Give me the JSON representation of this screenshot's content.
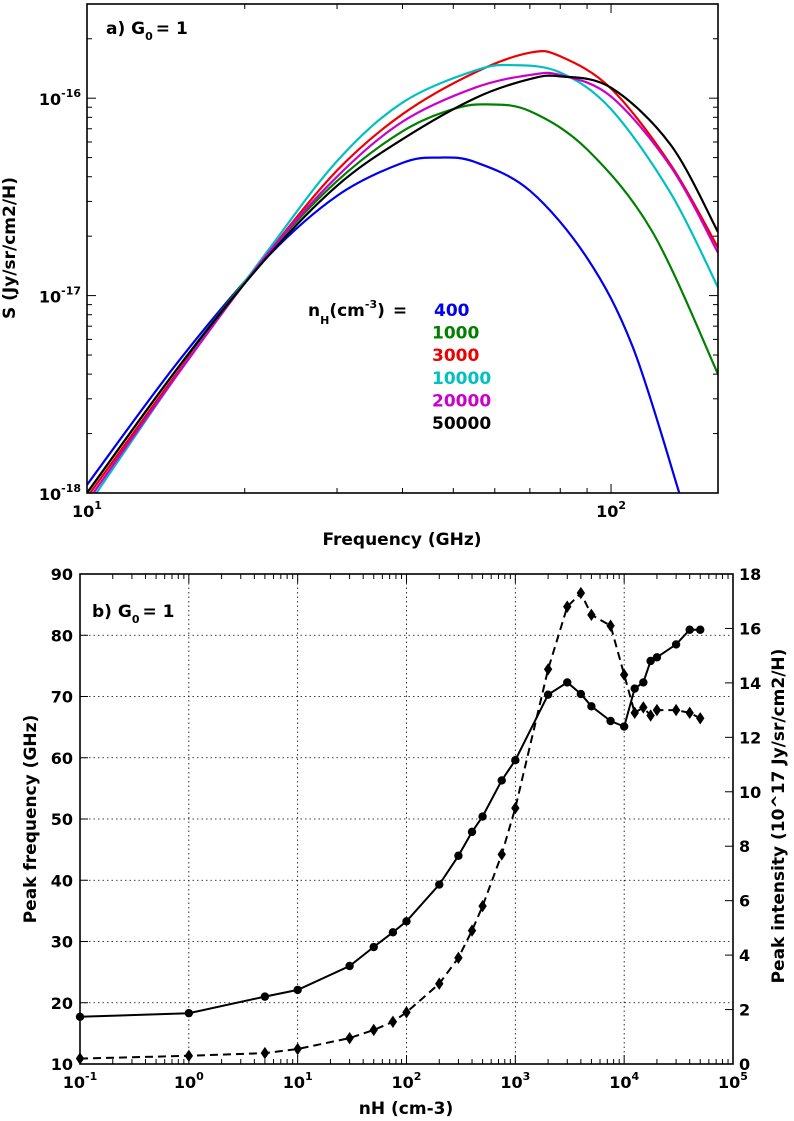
{
  "chart_data": [
    {
      "type": "line",
      "panel_label": "a)",
      "panel_g0": "G",
      "panel_g0_sub": "0",
      "panel_g0_val": "= 1",
      "xlabel": "Frequency (GHz)",
      "ylabel": "S (Jy/sr/cm2/H)",
      "xscale": "log",
      "yscale": "log",
      "xlim": [
        10,
        160
      ],
      "ylim": [
        1e-18,
        3e-16
      ],
      "x_ticks": [
        {
          "value": 10,
          "base": "10",
          "exp": "1"
        },
        {
          "value": 100,
          "base": "10",
          "exp": "2"
        }
      ],
      "y_ticks": [
        {
          "value": 1e-18,
          "base": "10",
          "exp": "-18"
        },
        {
          "value": 1e-17,
          "base": "10",
          "exp": "-17"
        },
        {
          "value": 1e-16,
          "base": "10",
          "exp": "-16"
        }
      ],
      "legend_title": {
        "n": "n",
        "sub": "H",
        "unit": "(cm",
        "sup": "-3",
        "close": ")",
        "eq": "="
      },
      "legend_position": "center",
      "series": [
        {
          "name": "400",
          "color": "#0000ee",
          "x": [
            10,
            15,
            22,
            30,
            40,
            47,
            55,
            70,
            90,
            110,
            135
          ],
          "y": [
            1.1e-18,
            4.7e-18,
            1.55e-17,
            3.2e-17,
            4.7e-17,
            5e-17,
            4.75e-17,
            3.4e-17,
            1.55e-17,
            5.5e-18,
            1e-18
          ]
        },
        {
          "name": "1000",
          "color": "#008000",
          "x": [
            10,
            15,
            22,
            30,
            40,
            50,
            58,
            70,
            90,
            120,
            160
          ],
          "y": [
            1e-18,
            4.4e-18,
            1.6e-17,
            3.8e-17,
            6.8e-17,
            8.8e-17,
            9.3e-17,
            8.6e-17,
            5.5e-17,
            2.1e-17,
            4e-18
          ]
        },
        {
          "name": "3000",
          "color": "#ee0000",
          "x": [
            10,
            15,
            22,
            30,
            40,
            55,
            70,
            80,
            100,
            130,
            160
          ],
          "y": [
            9.5e-19,
            4.2e-18,
            1.6e-17,
            4.3e-17,
            8.3e-17,
            1.35e-16,
            1.7e-16,
            1.63e-16,
            1.12e-16,
            4.6e-17,
            1.75e-17
          ]
        },
        {
          "name": "10000",
          "color": "#00c0c0",
          "x": [
            10,
            15,
            22,
            30,
            40,
            55,
            65,
            80,
            100,
            130,
            160
          ],
          "y": [
            8.5e-19,
            4.1e-18,
            1.65e-17,
            4.8e-17,
            9.5e-17,
            1.38e-16,
            1.47e-16,
            1.35e-16,
            8.8e-17,
            3.3e-17,
            1.1e-17
          ]
        },
        {
          "name": "20000",
          "color": "#cc00cc",
          "x": [
            10,
            15,
            22,
            30,
            40,
            55,
            70,
            80,
            100,
            130,
            160
          ],
          "y": [
            9e-19,
            4.1e-18,
            1.6e-17,
            4e-17,
            7.6e-17,
            1.13e-16,
            1.31e-16,
            1.31e-16,
            1.02e-16,
            4.5e-17,
            1.65e-17
          ]
        },
        {
          "name": "50000",
          "color": "#000000",
          "x": [
            10,
            15,
            22,
            30,
            40,
            55,
            70,
            80,
            100,
            130,
            160
          ],
          "y": [
            1e-18,
            4.4e-18,
            1.55e-17,
            3.6e-17,
            6.2e-17,
            1e-16,
            1.25e-16,
            1.29e-16,
            1.13e-16,
            5.8e-17,
            2.1e-17
          ]
        }
      ]
    },
    {
      "type": "line",
      "panel_label": "b)",
      "panel_g0": "G",
      "panel_g0_sub": "0",
      "panel_g0_val": "= 1",
      "xlabel": "nH (cm-3)",
      "ylabel_left": "Peak frequency (GHz)",
      "ylabel_right": "Peak intensity (10^17 Jy/sr/cm2/H)",
      "xscale": "log",
      "xlim": [
        0.1,
        100000
      ],
      "ylim_left": [
        10,
        90
      ],
      "ylim_right": [
        0,
        18
      ],
      "grid": true,
      "x_ticks": [
        {
          "value": 0.1,
          "base": "10",
          "exp": "-1"
        },
        {
          "value": 1,
          "base": "10",
          "exp": "0"
        },
        {
          "value": 10,
          "base": "10",
          "exp": "1"
        },
        {
          "value": 100,
          "base": "10",
          "exp": "2"
        },
        {
          "value": 1000,
          "base": "10",
          "exp": "3"
        },
        {
          "value": 10000,
          "base": "10",
          "exp": "4"
        },
        {
          "value": 100000,
          "base": "10",
          "exp": "5"
        }
      ],
      "y_ticks_left": [
        "10",
        "20",
        "30",
        "40",
        "50",
        "60",
        "70",
        "80",
        "90"
      ],
      "y_ticks_right": [
        "0",
        "2",
        "4",
        "6",
        "8",
        "10",
        "12",
        "14",
        "16",
        "18"
      ],
      "series": [
        {
          "name": "Peak frequency",
          "axis": "left",
          "style": "solid",
          "marker": "circle",
          "x": [
            0.1,
            1,
            5,
            10,
            30,
            50,
            75,
            100,
            200,
            300,
            400,
            500,
            750,
            1000,
            2000,
            3000,
            4000,
            5000,
            7500,
            10000,
            12500,
            15000,
            17500,
            20000,
            30000,
            40000,
            50000
          ],
          "y": [
            17.7,
            18.3,
            21.0,
            22.1,
            26.0,
            29.1,
            31.5,
            33.3,
            39.3,
            44.0,
            47.9,
            50.4,
            56.3,
            59.6,
            70.3,
            72.3,
            70.4,
            68.4,
            66.0,
            65.1,
            71.3,
            72.3,
            75.8,
            76.4,
            78.5,
            80.9,
            80.9
          ]
        },
        {
          "name": "Peak intensity",
          "axis": "right",
          "style": "dashed",
          "marker": "diamond",
          "x": [
            0.1,
            1,
            5,
            10,
            30,
            50,
            75,
            100,
            200,
            300,
            400,
            500,
            750,
            1000,
            2000,
            3000,
            4000,
            5000,
            7500,
            10000,
            12500,
            15000,
            17500,
            20000,
            30000,
            40000,
            50000
          ],
          "y": [
            0.2,
            0.3,
            0.4,
            0.55,
            0.95,
            1.25,
            1.55,
            1.9,
            2.95,
            3.9,
            4.9,
            5.8,
            7.7,
            9.4,
            14.5,
            16.8,
            17.3,
            16.5,
            16.1,
            14.3,
            12.9,
            13.1,
            12.8,
            13.0,
            13.0,
            12.9,
            12.7
          ]
        }
      ]
    }
  ]
}
